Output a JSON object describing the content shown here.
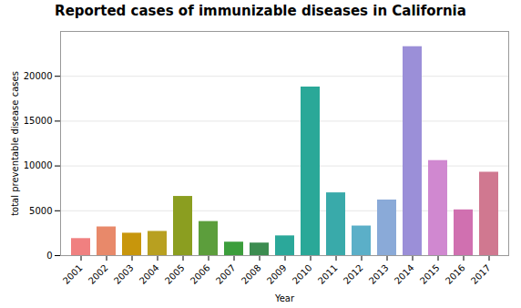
{
  "chart_data": {
    "type": "bar",
    "title": "Reported cases of immunizable diseases in California",
    "xlabel": "Year",
    "ylabel": "total preventable disease cases",
    "categories": [
      "2001",
      "2002",
      "2003",
      "2004",
      "2005",
      "2006",
      "2007",
      "2008",
      "2009",
      "2010",
      "2011",
      "2012",
      "2013",
      "2014",
      "2015",
      "2016",
      "2017"
    ],
    "values": [
      1900,
      3200,
      2500,
      2700,
      6600,
      3800,
      1500,
      1400,
      2200,
      18800,
      7000,
      3300,
      6200,
      23300,
      10600,
      5100,
      9300
    ],
    "colors": [
      "#F08080",
      "#E8896A",
      "#C8960C",
      "#B8A020",
      "#8B9E20",
      "#5C9E3C",
      "#3C9E3C",
      "#3C8C50",
      "#2BA89A",
      "#2AA898",
      "#39AAAA",
      "#5BAFC8",
      "#8AAAD8",
      "#9B8FD8",
      "#D088D0",
      "#D070B0",
      "#D07890"
    ],
    "ylim": [
      0,
      25000
    ],
    "yticks": [
      0,
      5000,
      10000,
      15000,
      20000
    ],
    "grid": true
  }
}
